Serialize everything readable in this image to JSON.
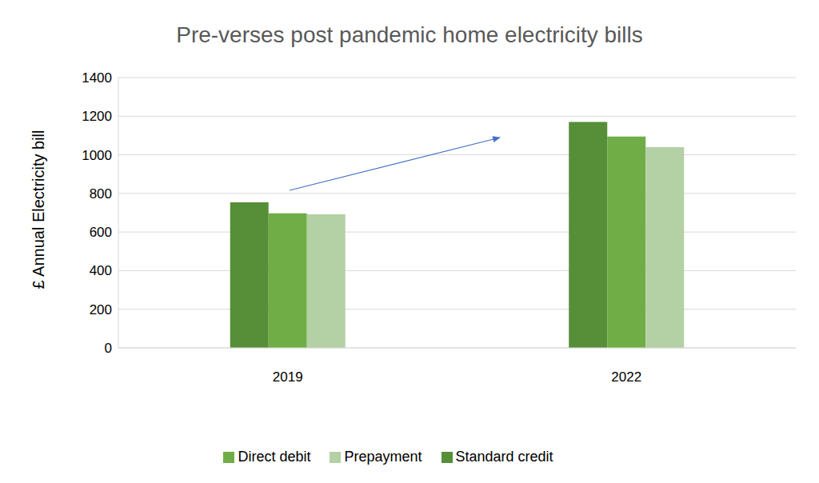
{
  "chart_data": {
    "type": "bar",
    "title": "Pre-verses post pandemic home electricity bills",
    "y_label": "£ Annual Electricity bill",
    "categories": [
      "2019",
      "2022"
    ],
    "series": [
      {
        "name": "Standard credit",
        "color": "#578e38",
        "values": [
          754,
          1170
        ]
      },
      {
        "name": "Direct debit",
        "color": "#70ad47",
        "values": [
          697,
          1095
        ]
      },
      {
        "name": "Prepayment",
        "color": "#b4d0a5",
        "values": [
          692,
          1040
        ]
      }
    ],
    "ylim": [
      0,
      1400
    ],
    "yticks": [
      0,
      200,
      400,
      600,
      800,
      1000,
      1200,
      1400
    ],
    "grid": true,
    "legend": "bottom"
  }
}
